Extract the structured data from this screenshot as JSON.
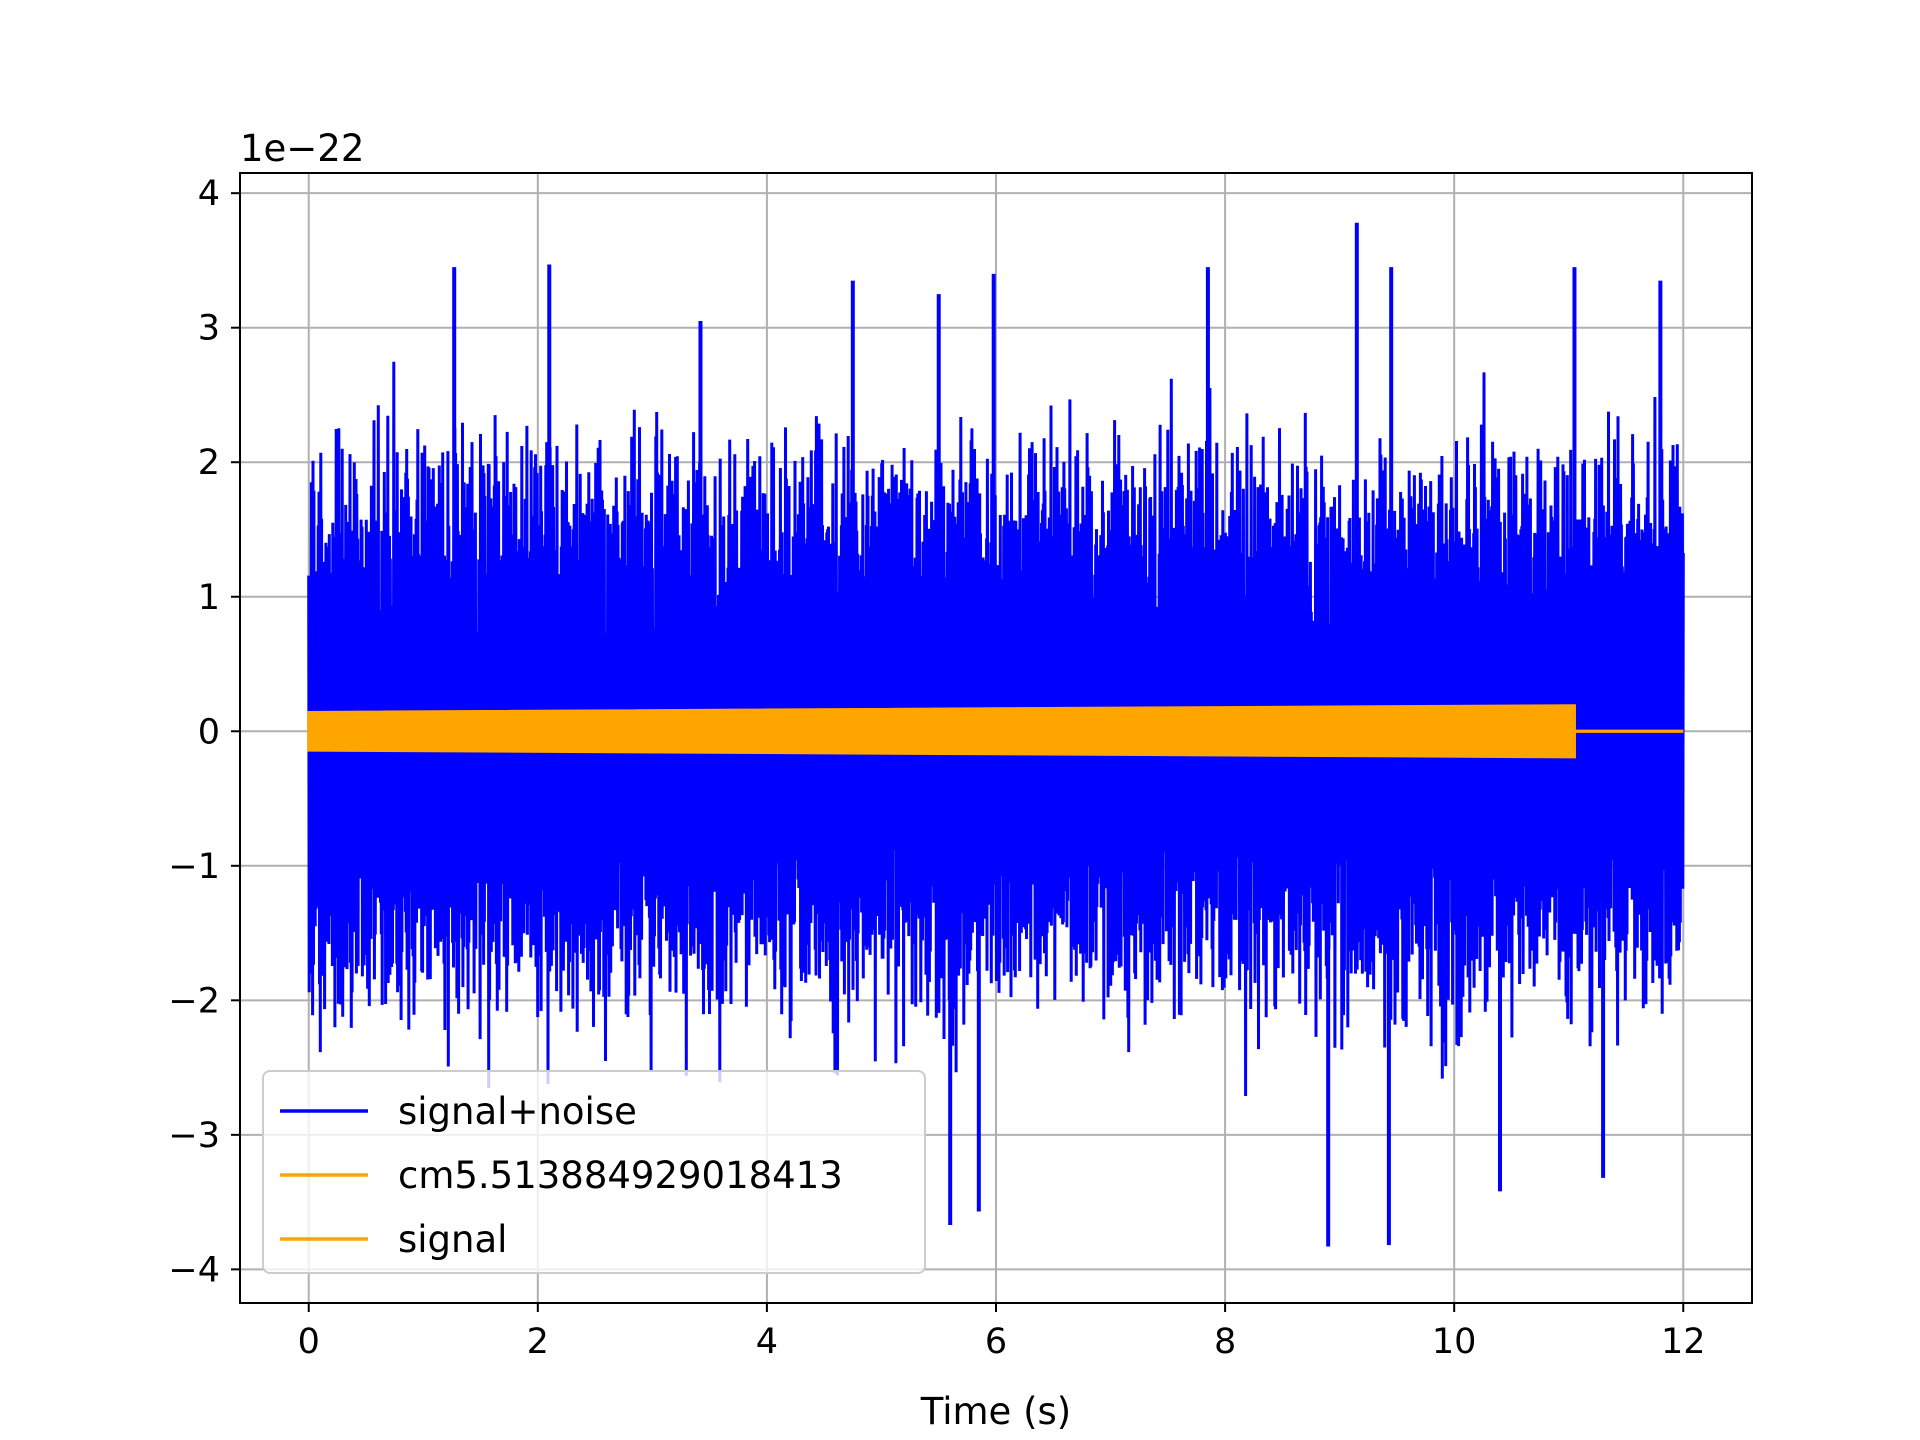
{
  "chart_data": {
    "type": "line",
    "title": "",
    "xlabel": "Time (s)",
    "ylabel": "",
    "offset_label": "1e−22",
    "xlim": [
      -0.6,
      12.6
    ],
    "ylim": [
      -4.25,
      4.15
    ],
    "xticks": [
      0,
      2,
      4,
      6,
      8,
      10,
      12
    ],
    "xtick_labels": [
      "0",
      "2",
      "4",
      "6",
      "8",
      "10",
      "12"
    ],
    "yticks": [
      4,
      3,
      2,
      1,
      0,
      -1,
      -2,
      -3,
      -4
    ],
    "ytick_labels": [
      "4",
      "3",
      "2",
      "1",
      "0",
      "−1",
      "−2",
      "−3",
      "−4"
    ],
    "grid": true,
    "legend_position": "lower-left",
    "series": [
      {
        "name": "signal+noise",
        "color": "#0000ff",
        "x_range": [
          0,
          12
        ],
        "typical_amplitude": 1.8,
        "notable_peaks": [
          {
            "x": 1.27,
            "y": 3.45
          },
          {
            "x": 2.1,
            "y": 3.47
          },
          {
            "x": 3.42,
            "y": 3.05
          },
          {
            "x": 4.75,
            "y": 3.35
          },
          {
            "x": 5.5,
            "y": 3.25
          },
          {
            "x": 5.98,
            "y": 3.4
          },
          {
            "x": 7.85,
            "y": 3.45
          },
          {
            "x": 9.15,
            "y": 3.78
          },
          {
            "x": 9.45,
            "y": 3.45
          },
          {
            "x": 11.05,
            "y": 3.45
          },
          {
            "x": 11.8,
            "y": 3.35
          }
        ],
        "notable_troughs": [
          {
            "x": 5.6,
            "y": -3.67
          },
          {
            "x": 5.85,
            "y": -3.57
          },
          {
            "x": 8.9,
            "y": -3.83
          },
          {
            "x": 9.43,
            "y": -3.82
          },
          {
            "x": 10.4,
            "y": -3.42
          },
          {
            "x": 11.3,
            "y": -3.32
          }
        ]
      },
      {
        "name": "cm5.513884929018413",
        "color": "#ffa500",
        "x_range": [
          0,
          12
        ],
        "amplitude": 0.0
      },
      {
        "name": "signal",
        "color": "#ffa500",
        "x_range": [
          0,
          11.05
        ],
        "amplitude_start": 0.14,
        "amplitude_end": 0.19,
        "after_end_value": 0
      }
    ]
  }
}
